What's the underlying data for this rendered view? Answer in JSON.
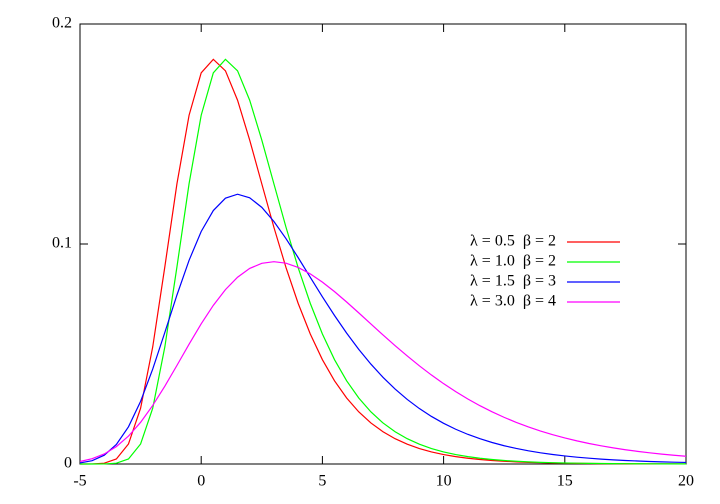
{
  "chart_data": {
    "type": "line",
    "x": [
      -5,
      -4.5,
      -4,
      -3.5,
      -3,
      -2.5,
      -2,
      -1.5,
      -1,
      -0.5,
      0,
      0.5,
      1,
      1.5,
      2,
      2.5,
      3,
      3.5,
      4,
      4.5,
      5,
      5.5,
      6,
      6.5,
      7,
      7.5,
      8,
      8.5,
      9,
      9.5,
      10,
      10.5,
      11,
      11.5,
      12,
      12.5,
      13,
      13.5,
      14,
      14.5,
      15,
      15.5,
      16,
      16.5,
      17,
      17.5,
      18,
      18.5,
      19,
      19.5,
      20
    ],
    "series": [
      {
        "name": "λ = 0.5  β = 2",
        "color": "#ff0000",
        "values": [
          0.0,
          3e-05,
          0.00036,
          0.00228,
          0.00911,
          0.02535,
          0.05322,
          0.08967,
          0.12744,
          0.15852,
          0.17779,
          0.18394,
          0.17872,
          0.16535,
          0.14726,
          0.12732,
          0.10757,
          0.08923,
          0.07302,
          0.05911,
          0.04742,
          0.03781,
          0.02999,
          0.02369,
          0.01865,
          0.01465,
          0.01149,
          0.00899,
          0.00703,
          0.00549,
          0.00429,
          0.00335,
          0.00261,
          0.00204,
          0.00159,
          0.00124,
          0.00097,
          0.00075,
          0.00059,
          0.00046,
          0.00036,
          0.00028,
          0.00022,
          0.00017,
          0.00013,
          0.0001,
          8e-05,
          6e-05,
          5e-05,
          4e-05,
          3e-05
        ]
      },
      {
        "name": "λ = 1.0  β = 2",
        "color": "#00ff00",
        "values": [
          0.0,
          0.0,
          3e-05,
          0.00036,
          0.00228,
          0.00911,
          0.02535,
          0.05322,
          0.08967,
          0.12744,
          0.15852,
          0.17779,
          0.18394,
          0.17872,
          0.16535,
          0.14726,
          0.12732,
          0.10757,
          0.08923,
          0.07302,
          0.05911,
          0.04742,
          0.03781,
          0.02999,
          0.02369,
          0.01865,
          0.01465,
          0.01149,
          0.00899,
          0.00703,
          0.00549,
          0.00429,
          0.00335,
          0.00261,
          0.00204,
          0.00159,
          0.00124,
          0.00097,
          0.00075,
          0.00059,
          0.00046,
          0.00036,
          0.00028,
          0.00022,
          0.00017,
          0.00013,
          0.0001,
          8e-05,
          6e-05,
          5e-05,
          4e-05
        ]
      },
      {
        "name": "λ = 1.5  β = 3",
        "color": "#0000ff",
        "values": [
          0.00047,
          0.00152,
          0.00401,
          0.00887,
          0.0169,
          0.02847,
          0.04314,
          0.05978,
          0.07682,
          0.09259,
          0.10568,
          0.11522,
          0.12083,
          0.12263,
          0.12102,
          0.11666,
          0.11023,
          0.10242,
          0.09381,
          0.08488,
          0.07602,
          0.0675,
          0.05949,
          0.05211,
          0.04542,
          0.0394,
          0.03405,
          0.02934,
          0.0252,
          0.02161,
          0.0185,
          0.01579,
          0.01347,
          0.01148,
          0.00977,
          0.0083,
          0.00706,
          0.00599,
          0.00509,
          0.00432,
          0.00366,
          0.0031,
          0.00263,
          0.00223,
          0.00189,
          0.0016,
          0.00136,
          0.00115,
          0.00097,
          0.00082,
          0.0007
        ]
      },
      {
        "name": "λ = 3.0  β = 4",
        "color": "#ff00ff",
        "values": [
          0.00114,
          0.0024,
          0.00456,
          0.00791,
          0.01268,
          0.01894,
          0.02661,
          0.03538,
          0.04483,
          0.05447,
          0.06372,
          0.07212,
          0.07926,
          0.0849,
          0.08889,
          0.09123,
          0.09197,
          0.09128,
          0.08936,
          0.08641,
          0.08268,
          0.07835,
          0.07363,
          0.06869,
          0.06366,
          0.05866,
          0.05378,
          0.0491,
          0.04462,
          0.04043,
          0.03651,
          0.03289,
          0.02955,
          0.02649,
          0.02371,
          0.02119,
          0.0189,
          0.01685,
          0.01499,
          0.01333,
          0.01184,
          0.01051,
          0.00932,
          0.00827,
          0.00733,
          0.00649,
          0.00574,
          0.00508,
          0.0045,
          0.00398,
          0.00352
        ]
      }
    ],
    "xlim": [
      -5,
      20
    ],
    "xticks": [
      -5,
      0,
      5,
      10,
      15,
      20
    ],
    "ylim": [
      0,
      0.2
    ],
    "yticks": [
      0,
      0.1,
      0.2
    ],
    "grid": false,
    "legend": "right"
  }
}
